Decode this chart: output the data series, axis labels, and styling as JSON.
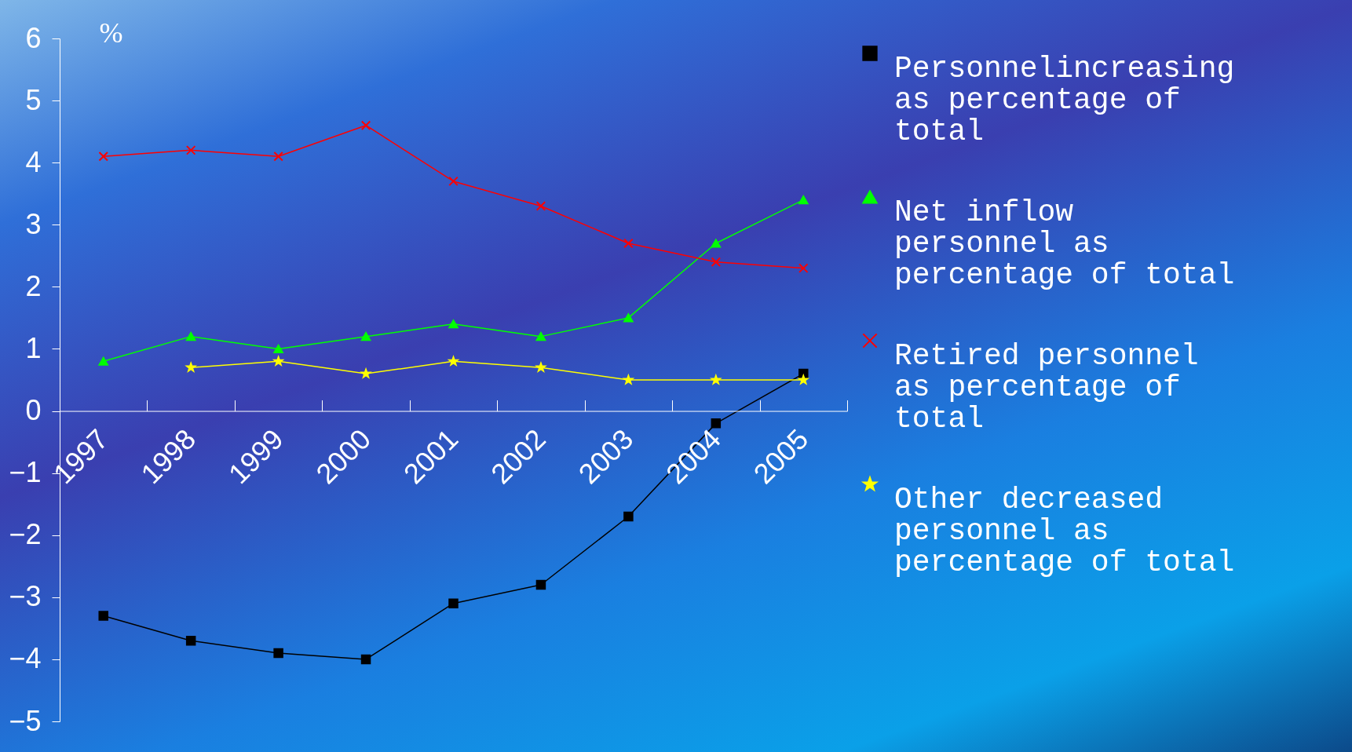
{
  "chart_data": {
    "type": "line",
    "ylabel": "%",
    "categories": [
      "1997",
      "1998",
      "1999",
      "2000",
      "2001",
      "2002",
      "2003",
      "2004",
      "2005"
    ],
    "ylim": [
      -5,
      6
    ],
    "yticks": [
      -5,
      -4,
      -3,
      -2,
      -1,
      0,
      1,
      2,
      3,
      4,
      5,
      6
    ],
    "grid": false,
    "legend": "right",
    "series": [
      {
        "name": "Personnelincreasing as percentage of total",
        "color": "#000000",
        "marker": "square",
        "values": [
          -3.3,
          -3.7,
          -3.9,
          -4.0,
          -3.1,
          -2.8,
          -1.7,
          -0.2,
          0.6
        ]
      },
      {
        "name": "Net inflow personnel as percentage of total",
        "color": "#00ff00",
        "marker": "triangle",
        "values": [
          0.8,
          1.2,
          1.0,
          1.2,
          1.4,
          1.2,
          1.5,
          2.7,
          3.4
        ]
      },
      {
        "name": "Retired personnel as percentage of total",
        "color": "#ff0000",
        "marker": "cross",
        "values": [
          4.1,
          4.2,
          4.1,
          4.6,
          3.7,
          3.3,
          2.7,
          2.4,
          2.3
        ]
      },
      {
        "name": "Other decreased personnel as percentage of total",
        "color": "#ffff00",
        "marker": "star",
        "values": [
          null,
          0.7,
          0.8,
          0.6,
          0.8,
          0.7,
          0.5,
          0.5,
          0.5
        ]
      }
    ]
  }
}
